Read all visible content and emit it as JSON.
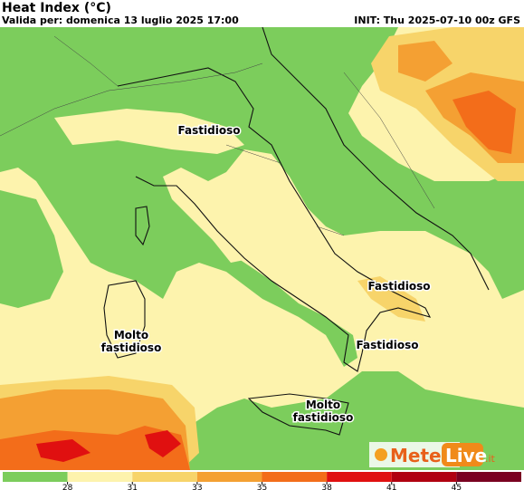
{
  "header": {
    "title": "Heat Index (°C)",
    "valid": "Valida per: domenica 13 luglio 2025 17:00",
    "init": "INIT: Thu 2025-07-10 00z GFS"
  },
  "labels": [
    {
      "text": "Fastidioso"
    },
    {
      "text": "Fastidioso"
    },
    {
      "text": "Fastidioso"
    },
    {
      "text": "Molto\nfastidioso"
    },
    {
      "text": "Molto\nfastidioso"
    }
  ],
  "colorbar": {
    "colors": [
      "#7ccd5c",
      "#fdf3ad",
      "#f7d46a",
      "#f4a033",
      "#f36d1a",
      "#e01010",
      "#b00010",
      "#7a0020"
    ],
    "ticks": [
      28,
      31,
      33,
      35,
      38,
      41,
      45
    ]
  },
  "logo": {
    "meteo": "Meteo",
    "live": "Live",
    "tld": ".it"
  }
}
